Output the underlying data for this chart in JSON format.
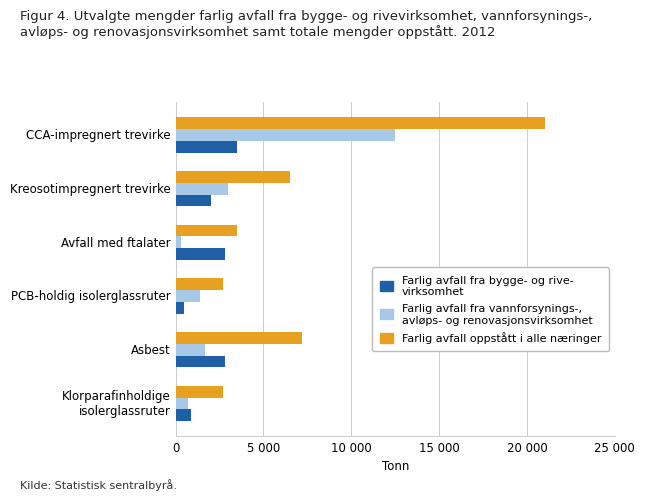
{
  "title_line1": "Figur 4. Utvalgte mengder farlig avfall fra bygge- og rivevirksomhet, vannforsynings-,",
  "title_line2": "avløps- og renovasjonsvirksomhet samt totale mengder oppstått. 2012",
  "categories": [
    "CCA-impregnert trevirke",
    "Kreosotimpregnert trevirke",
    "Avfall med ftalater",
    "PCB-holdig isolerglassruter",
    "Asbest",
    "Klorparafinholdige\nisolerglassruter"
  ],
  "series": {
    "bygge_rive": [
      3500,
      2000,
      2800,
      500,
      2800,
      900
    ],
    "vannforsyning": [
      12500,
      3000,
      300,
      1400,
      1700,
      700
    ],
    "alle_naeringer": [
      21000,
      6500,
      3500,
      2700,
      7200,
      2700
    ]
  },
  "colors": {
    "bygge_rive": "#1f5fa6",
    "vannforsyning": "#a8c8e8",
    "alle_naeringer": "#e8a020"
  },
  "legend_labels": [
    "Farlig avfall fra bygge- og rive-\nvirksomhet",
    "Farlig avfall fra vannforsynings-,\navløps- og renovasjonsvirksomhet",
    "Farlig avfall oppstått i alle næringer"
  ],
  "xlabel": "Tonn",
  "xlim": [
    0,
    25000
  ],
  "xticks": [
    0,
    5000,
    10000,
    15000,
    20000,
    25000
  ],
  "xticklabels": [
    "0",
    "5 000",
    "10 000",
    "15 000",
    "20 000",
    "25 000"
  ],
  "source": "Kilde: Statistisk sentralbyrå.",
  "background_color": "#ffffff",
  "grid_color": "#cccccc",
  "bar_height": 0.22,
  "title_fontsize": 9.5,
  "axis_fontsize": 8.5,
  "legend_fontsize": 8,
  "source_fontsize": 8
}
